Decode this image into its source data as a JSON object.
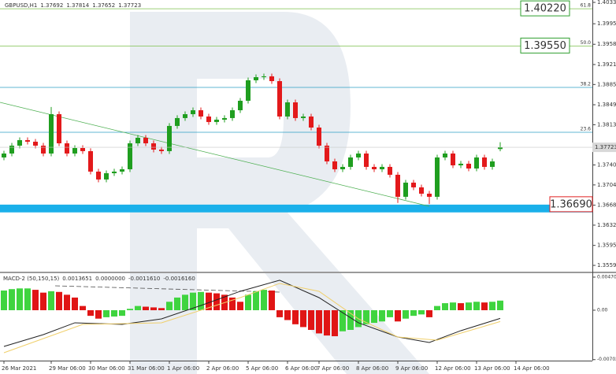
{
  "chart_data": {
    "type": "candlestick",
    "title": "GBPUSD,H1",
    "xlim": [
      -0.5,
      74.7
    ],
    "xticks": [
      {
        "value": 0,
        "label": "26 Mar 2021"
      },
      {
        "value": 6,
        "label": "29 Mar 06:00"
      },
      {
        "value": 11,
        "label": "30 Mar 06:00"
      },
      {
        "value": 16,
        "label": "31 Mar 06:00"
      },
      {
        "value": 21,
        "label": "1 Apr 06:00"
      },
      {
        "value": 26,
        "label": "2 Apr 06:00"
      },
      {
        "value": 31,
        "label": "5 Apr 06:00"
      },
      {
        "value": 36,
        "label": "6 Apr 06:00"
      },
      {
        "value": 40,
        "label": "7 Apr 06:00"
      },
      {
        "value": 45,
        "label": "8 Apr 06:00"
      },
      {
        "value": 50,
        "label": "9 Apr 06:00"
      },
      {
        "value": 55,
        "label": "12 Apr 06:00"
      },
      {
        "value": 60,
        "label": "13 Apr 06:00"
      },
      {
        "value": 65,
        "label": "14 Apr 06:00"
      }
    ],
    "ylim": [
      1.35482,
      1.40378
    ],
    "yticks": [
      1.40335,
      {
        "value": 1.3995,
        "label": "1.39950"
      },
      {
        "value": 1.3958,
        "label": "1.39580"
      },
      1.39215,
      1.38855,
      {
        "value": 1.3849,
        "label": "1.38490"
      },
      {
        "value": 1.3813,
        "label": "1.38130"
      },
      1.37405,
      1.37045,
      {
        "value": 1.3668,
        "label": "1.36680"
      },
      {
        "value": 1.3632,
        "label": "1.36320"
      },
      1.35955,
      1.35595
    ],
    "open": [
      1.3754,
      1.37611,
      1.37753,
      1.37852,
      1.37824,
      1.37753,
      1.37611,
      1.3832,
      1.37795,
      1.37611,
      1.3771,
      1.37654,
      1.37285,
      1.37143,
      1.37256,
      1.37285,
      1.37327,
      1.37795,
      1.37895,
      1.37795,
      1.37682,
      1.37654,
      1.38108,
      1.3825,
      1.3832,
      1.38391,
      1.38278,
      1.38179,
      1.38221,
      1.3825,
      1.38391,
      1.38562,
      1.38931,
      1.38987,
      1.39002,
      1.38916,
      1.38278,
      1.38533,
      1.3825,
      1.38278,
      1.38079,
      1.37753,
      1.37469,
      1.37327,
      1.3737,
      1.3754,
      1.37611,
      1.3737,
      1.37327,
      1.3737,
      1.37228,
      1.36831,
      1.37086,
      1.37001,
      1.36887,
      1.36831,
      1.3754,
      1.37611,
      1.37398,
      1.37427,
      1.37341,
      1.3754,
      1.3737,
      1.37692
    ],
    "high": [
      1.37661,
      1.37803,
      1.37902,
      1.37902,
      1.37874,
      1.37803,
      1.3845,
      1.3837,
      1.37845,
      1.3776,
      1.3776,
      1.37704,
      1.37335,
      1.37306,
      1.37335,
      1.37377,
      1.37845,
      1.37945,
      1.37945,
      1.37845,
      1.37732,
      1.38158,
      1.383,
      1.3837,
      1.38441,
      1.38441,
      1.38328,
      1.38271,
      1.383,
      1.38441,
      1.38612,
      1.38981,
      1.39037,
      1.39052,
      1.39052,
      1.38966,
      1.38583,
      1.38583,
      1.38328,
      1.38328,
      1.38129,
      1.37803,
      1.37519,
      1.3742,
      1.3759,
      1.37661,
      1.37661,
      1.3742,
      1.3742,
      1.3742,
      1.37278,
      1.37136,
      1.37136,
      1.37051,
      1.36937,
      1.3759,
      1.37661,
      1.37661,
      1.37477,
      1.37477,
      1.3759,
      1.3759,
      1.37519,
      1.37814
    ],
    "low": [
      1.3749,
      1.37561,
      1.37703,
      1.37774,
      1.37703,
      1.37561,
      1.37561,
      1.37745,
      1.37561,
      1.37561,
      1.37604,
      1.37235,
      1.37093,
      1.37093,
      1.37206,
      1.37235,
      1.37277,
      1.37745,
      1.37745,
      1.37632,
      1.37604,
      1.37604,
      1.38058,
      1.382,
      1.3827,
      1.38228,
      1.38129,
      1.38129,
      1.38171,
      1.382,
      1.38341,
      1.38512,
      1.38881,
      1.38937,
      1.38866,
      1.38228,
      1.38228,
      1.382,
      1.382,
      1.38029,
      1.37703,
      1.37419,
      1.37277,
      1.37277,
      1.3732,
      1.3749,
      1.3732,
      1.37277,
      1.37277,
      1.37178,
      1.3672,
      1.36781,
      1.36951,
      1.36837,
      1.367,
      1.36781,
      1.3749,
      1.37348,
      1.37348,
      1.37291,
      1.37291,
      1.3732,
      1.3732,
      1.37652
    ],
    "close": [
      1.37611,
      1.37753,
      1.37852,
      1.37824,
      1.37753,
      1.37611,
      1.3832,
      1.37795,
      1.37611,
      1.3771,
      1.37654,
      1.37285,
      1.37143,
      1.37256,
      1.37285,
      1.37327,
      1.37795,
      1.37895,
      1.37795,
      1.37682,
      1.37654,
      1.38108,
      1.3825,
      1.3832,
      1.38391,
      1.38278,
      1.38179,
      1.38221,
      1.3825,
      1.38391,
      1.38562,
      1.38931,
      1.38987,
      1.39002,
      1.38916,
      1.38278,
      1.38533,
      1.3825,
      1.38278,
      1.38079,
      1.37753,
      1.37469,
      1.37327,
      1.3737,
      1.3754,
      1.37611,
      1.3737,
      1.37327,
      1.3737,
      1.37228,
      1.36831,
      1.37086,
      1.37001,
      1.36887,
      1.36831,
      1.3754,
      1.37611,
      1.37398,
      1.37427,
      1.37341,
      1.3754,
      1.3737,
      1.37469,
      1.37723
    ],
    "up_color": "#1f9e1f",
    "down_color": "#e3191b",
    "levels": [
      {
        "name": "61.8",
        "value": 1.4022,
        "value_label": "1.40220",
        "color": "#7cc04b"
      },
      {
        "name": "50.0",
        "value": 1.3955,
        "value_label": "1.39550",
        "color": "#7cc04b"
      },
      {
        "name": "38.2",
        "value": 1.38803,
        "color": "#2b9fc4"
      },
      {
        "name": "23.6",
        "value": 1.37994,
        "color": "#2b9fc4"
      }
    ],
    "support": {
      "value": 1.3669,
      "value_label": "1.36690",
      "low": 1.3655,
      "color": "#1ab0ea"
    },
    "trendline": {
      "x": [
        -0.5,
        54
      ],
      "values": [
        1.38533,
        1.3666
      ],
      "color": "#4caf50"
    },
    "macd": {
      "type": "histogram",
      "title": "MACD-2 (50,150,15)",
      "ylim": [
        -0.00717,
        0.00515
      ],
      "yticks": [
        0.0047063,
        {
          "value": 0,
          "label": "0.00"
        },
        -0.007029
      ],
      "values": [
        0.0028,
        0.003,
        0.0031,
        0.0031,
        0.0029,
        0.0025,
        0.0027,
        0.0026,
        0.0022,
        0.0018,
        0.0006,
        -0.0008,
        -0.0012,
        -0.001,
        -0.0009,
        -0.0008,
        0.0002,
        0.0006,
        0.0005,
        0.0004,
        0.0003,
        0.0012,
        0.0018,
        0.0022,
        0.0025,
        0.0026,
        0.0025,
        0.0024,
        0.0022,
        0.0018,
        0.0012,
        0.0022,
        0.0027,
        0.0029,
        0.0028,
        -0.001,
        -0.0014,
        -0.002,
        -0.0024,
        -0.0028,
        -0.0033,
        -0.0036,
        -0.0037,
        -0.003,
        -0.0028,
        -0.0024,
        -0.002,
        -0.0018,
        -0.0016,
        -0.001,
        -0.0016,
        -0.0012,
        -0.0008,
        -0.0006,
        -0.001,
        0.0006,
        0.001,
        0.0011,
        0.001,
        0.0011,
        0.0012,
        0.0011,
        0.0012,
        0.0013651
      ],
      "up_color": "#3fd43f",
      "down_color": "#e01515",
      "readouts": [
        {
          "value": 0,
          "label": "0.0000000"
        },
        {
          "value": -0.001161,
          "label": "-0.0011610"
        },
        {
          "value": -0.001616,
          "label": "-0.0016160"
        }
      ],
      "series": [
        {
          "color": "#222222",
          "x": [
            0,
            5,
            9,
            15,
            20,
            25,
            30,
            35,
            40,
            45,
            50,
            54,
            58,
            63
          ],
          "values": [
            -0.00515,
            -0.00347,
            -0.00179,
            -0.00202,
            -0.00123,
            0.00067,
            0.00269,
            0.00426,
            0.00179,
            -0.00179,
            -0.00381,
            -0.00459,
            -0.00291,
            -0.001161
          ]
        },
        {
          "color": "#f0cf6a",
          "x": [
            0,
            10,
            20,
            30,
            35,
            40,
            45,
            50,
            55,
            63
          ],
          "values": [
            -0.00605,
            -0.00202,
            -0.00179,
            0.00179,
            0.00381,
            0.00269,
            -0.00123,
            -0.00381,
            -0.00426,
            -0.001616
          ]
        }
      ]
    }
  }
}
